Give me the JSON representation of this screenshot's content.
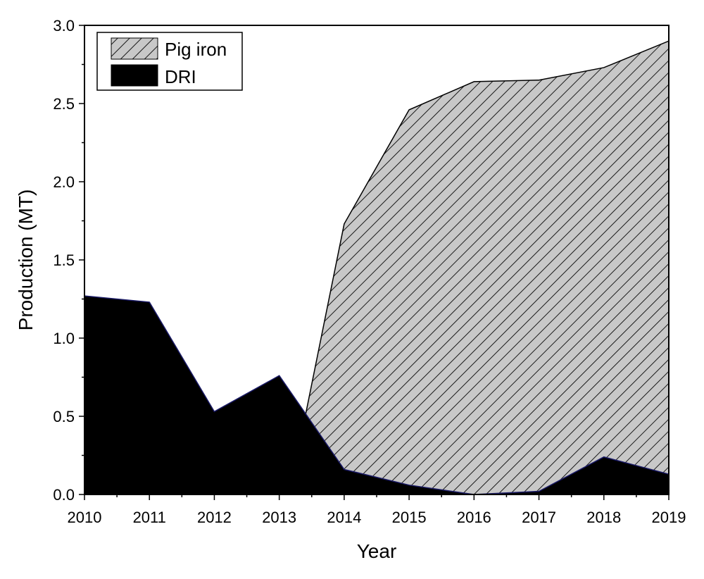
{
  "chart_data": {
    "type": "area",
    "title": "",
    "xlabel": "Year",
    "ylabel": "Production (MT)",
    "x": [
      2010,
      2011,
      2012,
      2013,
      2014,
      2015,
      2016,
      2017,
      2018,
      2019
    ],
    "xlim": [
      2010,
      2019
    ],
    "ylim": [
      0,
      3.0
    ],
    "yticks": [
      "0.0",
      "0.5",
      "1.0",
      "1.5",
      "2.0",
      "2.5",
      "3.0"
    ],
    "xticks": [
      "2010",
      "2011",
      "2012",
      "2013",
      "2014",
      "2015",
      "2016",
      "2017",
      "2018",
      "2019"
    ],
    "grid": false,
    "legend_position": "top-left",
    "series": [
      {
        "name": "Pig iron",
        "fill": "hatched-gray",
        "x": [
          2010,
          2011,
          2012,
          2013,
          2013.4,
          2014,
          2015,
          2016,
          2017,
          2018,
          2019
        ],
        "values": [
          0,
          0,
          0,
          0,
          0.5,
          1.73,
          2.46,
          2.64,
          2.65,
          2.73,
          2.9
        ]
      },
      {
        "name": "DRI",
        "fill": "black",
        "x": [
          2010,
          2011,
          2012,
          2013,
          2014,
          2015,
          2016,
          2017,
          2018,
          2019
        ],
        "values": [
          1.27,
          1.23,
          0.53,
          0.76,
          0.16,
          0.06,
          0.0,
          0.02,
          0.24,
          0.13
        ]
      }
    ]
  }
}
